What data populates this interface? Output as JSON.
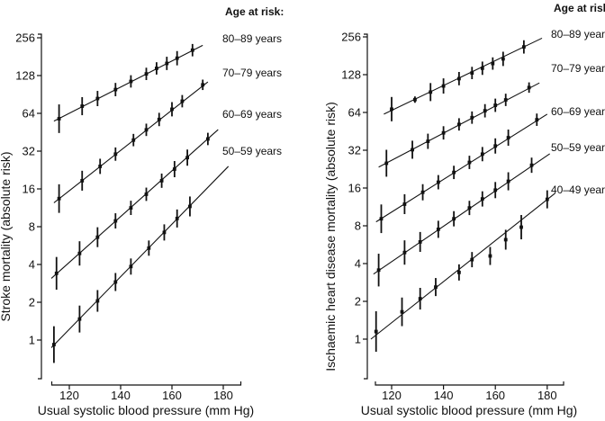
{
  "chart_data": [
    {
      "type": "scatter",
      "id": "stroke-mortality",
      "xlabel": "Usual systolic blood pressure (mm Hg)",
      "ylabel": "Stroke mortality (absolute risk)",
      "legend_title": "Age at risk:",
      "legend_position": "right-outside",
      "grid": false,
      "x_ticks": [
        "120",
        "140",
        "160",
        "180"
      ],
      "x_tick_values": [
        120,
        140,
        160,
        180
      ],
      "y_ticks": [
        "256",
        "128",
        "64",
        "32",
        "16",
        "8",
        "4",
        "2",
        "1"
      ],
      "y_tick_values": [
        256,
        128,
        64,
        32,
        16,
        8,
        4,
        2,
        1
      ],
      "xlim": [
        113,
        187
      ],
      "ylim": [
        0.5,
        290
      ],
      "y_scale": "log2",
      "series": [
        {
          "name": "80–89 years",
          "line": {
            "x": [
              114,
              172
            ],
            "y": [
              55.5,
              223
            ]
          },
          "points": [
            [
              116,
              58,
              1.3
            ],
            [
              125,
              73,
              1.18
            ],
            [
              131,
              84,
              1.15
            ],
            [
              138,
              99,
              1.13
            ],
            [
              144,
              115,
              1.12
            ],
            [
              150,
              132,
              1.12
            ],
            [
              154,
              146,
              1.12
            ],
            [
              158,
              160,
              1.13
            ],
            [
              162,
              176,
              1.14
            ],
            [
              168,
              204,
              1.12
            ]
          ]
        },
        {
          "name": "70–79 years",
          "line": {
            "x": [
              114,
              174
            ],
            "y": [
              12.4,
              114
            ]
          },
          "points": [
            [
              116,
              13.4,
              1.3
            ],
            [
              125,
              18.6,
              1.2
            ],
            [
              132,
              24.2,
              1.15
            ],
            [
              138,
              30.3,
              1.13
            ],
            [
              145,
              39.2,
              1.12
            ],
            [
              150,
              47.3,
              1.12
            ],
            [
              155,
              57.2,
              1.13
            ],
            [
              160,
              69,
              1.14
            ],
            [
              164,
              80,
              1.12
            ],
            [
              172,
              108,
              1.1
            ]
          ]
        },
        {
          "name": "60–69 years",
          "line": {
            "x": [
              113,
              178
            ],
            "y": [
              3.1,
              47.5
            ]
          },
          "points": [
            [
              115,
              3.4,
              1.35
            ],
            [
              124,
              4.9,
              1.25
            ],
            [
              131,
              6.6,
              1.2
            ],
            [
              138,
              8.9,
              1.15
            ],
            [
              144,
              11.3,
              1.14
            ],
            [
              150,
              14.5,
              1.13
            ],
            [
              156,
              18.6,
              1.14
            ],
            [
              161,
              23,
              1.16
            ],
            [
              166,
              28.4,
              1.16
            ],
            [
              174,
              40,
              1.12
            ]
          ]
        },
        {
          "name": "50–59 years",
          "line": {
            "x": [
              113,
              182
            ],
            "y": [
              0.87,
              24.2
            ]
          },
          "points": [
            [
              114,
              0.92,
              1.4
            ],
            [
              124,
              1.47,
              1.28
            ],
            [
              131,
              2.05,
              1.22
            ],
            [
              138,
              2.9,
              1.18
            ],
            [
              144,
              3.85,
              1.16
            ],
            [
              151,
              5.4,
              1.15
            ],
            [
              157,
              7.2,
              1.16
            ],
            [
              162,
              9.3,
              1.18
            ],
            [
              167,
              11.6,
              1.2
            ]
          ]
        }
      ]
    },
    {
      "type": "scatter",
      "id": "ihd-mortality",
      "xlabel": "Usual systolic blood pressure (mm Hg)",
      "ylabel": "Ischaemic heart disease mortality (absolute risk)",
      "legend_title": "Age at risk:",
      "legend_position": "right-outside",
      "grid": false,
      "x_ticks": [
        "120",
        "140",
        "160",
        "180"
      ],
      "x_tick_values": [
        120,
        140,
        160,
        180
      ],
      "y_ticks": [
        "256",
        "128",
        "64",
        "32",
        "16",
        "8",
        "4",
        "2",
        "1"
      ],
      "y_tick_values": [
        256,
        128,
        64,
        32,
        16,
        8,
        4,
        2,
        1
      ],
      "xlim": [
        113,
        187
      ],
      "ylim": [
        0.5,
        290
      ],
      "y_scale": "log2",
      "series": [
        {
          "name": "80–89 years",
          "line": {
            "x": [
              117,
              178
            ],
            "y": [
              62,
              250
            ]
          },
          "points": [
            [
              120,
              68,
              1.25
            ],
            [
              129,
              81,
              1.06
            ],
            [
              135,
              93,
              1.18
            ],
            [
              140,
              104,
              1.15
            ],
            [
              146,
              119,
              1.13
            ],
            [
              151,
              132,
              1.12
            ],
            [
              155,
              144,
              1.13
            ],
            [
              159,
              157,
              1.12
            ],
            [
              163,
              171,
              1.14
            ],
            [
              171,
              213,
              1.13
            ]
          ]
        },
        {
          "name": "70–79 years",
          "line": {
            "x": [
              115,
              177
            ],
            "y": [
              23.5,
              110
            ]
          },
          "points": [
            [
              118,
              25.2,
              1.28
            ],
            [
              128,
              32.3,
              1.18
            ],
            [
              134,
              37.7,
              1.15
            ],
            [
              140,
              44,
              1.13
            ],
            [
              146,
              51.4,
              1.12
            ],
            [
              151,
              58.2,
              1.12
            ],
            [
              156,
              66,
              1.13
            ],
            [
              160,
              73,
              1.13
            ],
            [
              164,
              80.6,
              1.12
            ],
            [
              173,
              101,
              1.1
            ]
          ]
        },
        {
          "name": "60–69 years",
          "line": {
            "x": [
              114,
              180
            ],
            "y": [
              8.6,
              62
            ]
          },
          "points": [
            [
              116,
              9.1,
              1.3
            ],
            [
              125,
              11.9,
              1.2
            ],
            [
              132,
              14.8,
              1.16
            ],
            [
              138,
              17.8,
              1.14
            ],
            [
              144,
              21.3,
              1.13
            ],
            [
              150,
              25.6,
              1.13
            ],
            [
              155,
              29.8,
              1.14
            ],
            [
              160,
              34.6,
              1.15
            ],
            [
              165,
              40.3,
              1.16
            ],
            [
              176,
              56,
              1.12
            ]
          ]
        },
        {
          "name": "50–59 years",
          "line": {
            "x": [
              113,
              181
            ],
            "y": [
              3.3,
              30
            ]
          },
          "points": [
            [
              115,
              3.55,
              1.35
            ],
            [
              125,
              4.9,
              1.25
            ],
            [
              131,
              5.95,
              1.2
            ],
            [
              138,
              7.5,
              1.17
            ],
            [
              144,
              9.1,
              1.15
            ],
            [
              150,
              11.1,
              1.14
            ],
            [
              155,
              13.1,
              1.15
            ],
            [
              160,
              15.4,
              1.16
            ],
            [
              165,
              18.1,
              1.18
            ],
            [
              174,
              24.3,
              1.15
            ]
          ]
        },
        {
          "name": "40–49 years",
          "line": {
            "x": [
              112,
              183
            ],
            "y": [
              1.0,
              14.5
            ]
          },
          "points": [
            [
              114,
              1.15,
              1.45
            ],
            [
              124,
              1.65,
              1.3
            ],
            [
              131,
              2.1,
              1.22
            ],
            [
              137,
              2.6,
              1.18
            ],
            [
              146,
              3.4,
              1.16
            ],
            [
              151,
              4.3,
              1.15
            ],
            [
              158,
              4.6,
              1.18
            ],
            [
              164,
              6.2,
              1.2
            ],
            [
              170,
              7.8,
              1.25
            ],
            [
              180,
              13,
              1.18
            ]
          ]
        }
      ]
    }
  ],
  "style": {
    "ink_color": "#111111",
    "background_color": "#ffffff"
  }
}
